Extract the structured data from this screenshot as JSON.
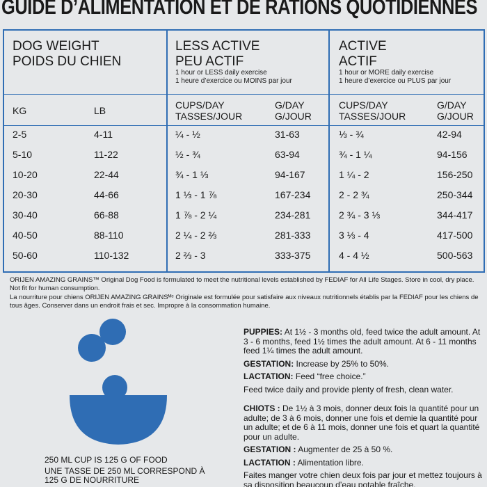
{
  "title": "GUIDE D’ALIMENTATION ET DE RATIONS QUOTIDIENNES",
  "table": {
    "headers": [
      {
        "title": [
          "DOG WEIGHT",
          "POIDS DU CHIEN"
        ],
        "sub": []
      },
      {
        "title": [
          "LESS ACTIVE",
          "PEU ACTIF"
        ],
        "sub": [
          "1 hour or LESS daily exercise",
          "1 heure d’exercice ou MOINS par jour"
        ]
      },
      {
        "title": [
          "ACTIVE",
          "ACTIF"
        ],
        "sub": [
          "1 hour or MORE daily exercise",
          "1 heure d’exercice ou PLUS par jour"
        ]
      }
    ],
    "columns": [
      [
        "KG"
      ],
      [
        "LB"
      ],
      [
        "CUPS/DAY",
        "TASSES/JOUR"
      ],
      [
        "G/DAY",
        "G/JOUR"
      ],
      [
        "CUPS/DAY",
        "TASSES/JOUR"
      ],
      [
        "G/DAY",
        "G/JOUR"
      ]
    ],
    "rows": [
      [
        "2-5",
        "4-11",
        "¼ - ½",
        "31-63",
        "⅓ - ¾",
        "42-94"
      ],
      [
        "5-10",
        "11-22",
        "½ - ¾",
        "63-94",
        "¾ - 1 ¼",
        "94-156"
      ],
      [
        "10-20",
        "22-44",
        "¾ - 1 ⅓",
        "94-167",
        "1 ¼ - 2",
        "156-250"
      ],
      [
        "20-30",
        "44-66",
        "1 ⅓ - 1 ⅞",
        "167-234",
        "2 - 2 ¾",
        "250-344"
      ],
      [
        "30-40",
        "66-88",
        "1 ⅞ - 2 ¼",
        "234-281",
        "2 ¾ - 3 ⅓",
        "344-417"
      ],
      [
        "40-50",
        "88-110",
        "2 ¼ - 2 ⅔",
        "281-333",
        "3 ⅓ - 4",
        "417-500"
      ],
      [
        "50-60",
        "110-132",
        "2 ⅔ - 3",
        "333-375",
        "4 - 4 ½",
        "500-563"
      ]
    ]
  },
  "footnotes": [
    "ORIJEN AMAZING GRAINS™ Original Dog Food is formulated to meet the nutritional levels established by FEDIAF for All Life Stages. Store in cool, dry place. Not fit for human consumption.",
    "La nourriture pour chiens ORIJEN AMAZING GRAINSᴹᶜ Originale est formulée pour satisfaire aux niveaux nutritionnels établis par la FEDIAF pour les chiens de tous âges. Conserver dans un endroit frais et sec. Impropre à la consommation humaine."
  ],
  "captions": [
    "250 ML CUP IS 125 G OF FOOD",
    "UNE TASSE DE 250 ML CORRESPOND À 125 G DE NOURRITURE"
  ],
  "notes": [
    [
      {
        "label": "PUPPIES:",
        "text": " At 1½ - 3 months old, feed twice the adult amount. At 3 - 6 months, feed 1½ times the adult amount. At 6 - 11 months feed 1¼ times the adult amount."
      },
      {
        "label": "GESTATION:",
        "text": " Increase by 25% to 50%."
      },
      {
        "label": "LACTATION:",
        "text": " Feed “free choice.”"
      },
      {
        "label": "",
        "text": "Feed twice daily and provide plenty of fresh, clean water."
      }
    ],
    [
      {
        "label": "CHIOTS :",
        "text": " De 1½ à 3 mois, donner deux fois la quantité pour un adulte; de 3 à 6 mois, donner une fois et demie la quantité pour un adulte; et de 6 à 11 mois, donner une fois et quart la quantité pour un adulte."
      },
      {
        "label": "GESTATION :",
        "text": " Augmenter de 25 à 50 %."
      },
      {
        "label": "LACTATION :",
        "text": " Alimentation libre."
      },
      {
        "label": "",
        "text": "Faites manger votre chien deux fois par jour et mettez toujours à sa disposition beaucoup d’eau potable fraîche."
      }
    ]
  ]
}
